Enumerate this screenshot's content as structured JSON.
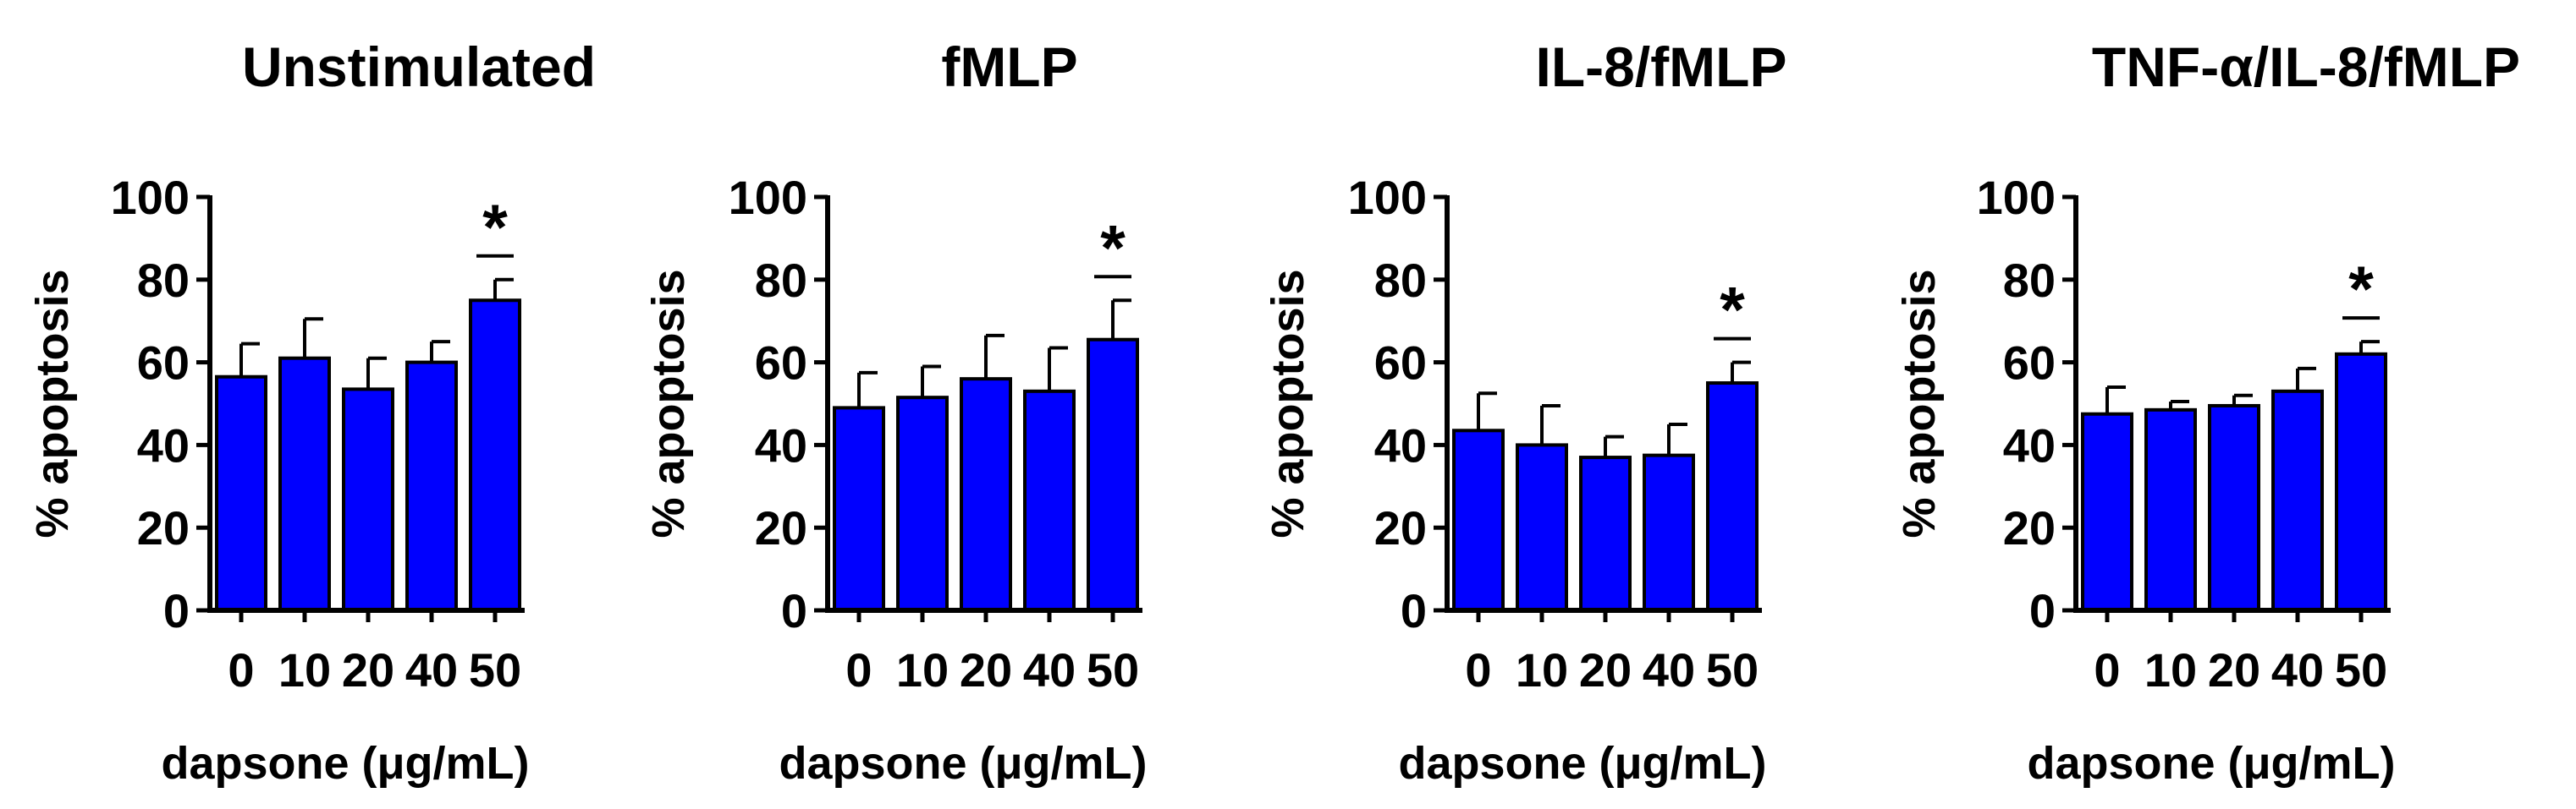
{
  "chart_data": [
    {
      "type": "bar",
      "title": "Unstimulated",
      "xlabel": "dapsone (μg/mL)",
      "ylabel": "% apoptosis",
      "ylim": [
        0,
        100
      ],
      "yticks": [
        "0",
        "20",
        "40",
        "60",
        "80",
        "100"
      ],
      "categories": [
        "0",
        "10",
        "20",
        "40",
        "50"
      ],
      "values": [
        56.5,
        61,
        53.5,
        60,
        75
      ],
      "errors": [
        8,
        9.5,
        7.5,
        5,
        5
      ],
      "significance": [
        "",
        "",
        "",
        "",
        "*"
      ],
      "bar_color": "#0000FF"
    },
    {
      "type": "bar",
      "title": "fMLP",
      "xlabel": "dapsone (μg/mL)",
      "ylabel": "% apoptosis",
      "ylim": [
        0,
        100
      ],
      "yticks": [
        "0",
        "20",
        "40",
        "60",
        "80",
        "100"
      ],
      "categories": [
        "0",
        "10",
        "20",
        "40",
        "50"
      ],
      "values": [
        49,
        51.5,
        56,
        53,
        65.5
      ],
      "errors": [
        8.5,
        7.5,
        10.5,
        10.5,
        9.5
      ],
      "significance": [
        "",
        "",
        "",
        "",
        "*"
      ],
      "bar_color": "#0000FF"
    },
    {
      "type": "bar",
      "title": "IL-8/fMLP",
      "xlabel": "dapsone (μg/mL)",
      "ylabel": "% apoptosis",
      "ylim": [
        0,
        100
      ],
      "yticks": [
        "0",
        "20",
        "40",
        "60",
        "80",
        "100"
      ],
      "categories": [
        "0",
        "10",
        "20",
        "40",
        "50"
      ],
      "values": [
        43.5,
        40,
        37,
        37.5,
        55
      ],
      "errors": [
        9,
        9.5,
        5,
        7.5,
        5
      ],
      "significance": [
        "",
        "",
        "",
        "",
        "*"
      ],
      "bar_color": "#0000FF"
    },
    {
      "type": "bar",
      "title": "TNF-α/IL-8/fMLP",
      "xlabel": "dapsone (μg/mL)",
      "ylabel": "% apoptosis",
      "ylim": [
        0,
        100
      ],
      "yticks": [
        "0",
        "20",
        "40",
        "60",
        "80",
        "100"
      ],
      "categories": [
        "0",
        "10",
        "20",
        "40",
        "50"
      ],
      "values": [
        47.5,
        48.5,
        49.5,
        53,
        62
      ],
      "errors": [
        6.5,
        2,
        2.5,
        5.5,
        3
      ],
      "significance": [
        "",
        "",
        "",
        "",
        "*"
      ],
      "bar_color": "#0000FF"
    }
  ]
}
